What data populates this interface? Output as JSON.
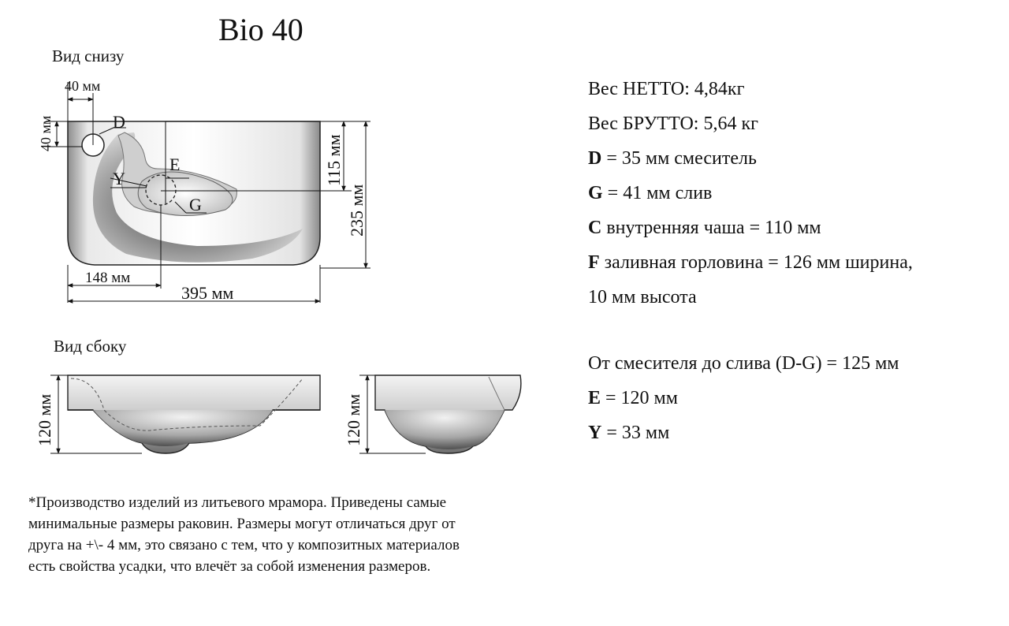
{
  "title": "Bio 40",
  "views": {
    "bottom": "Вид снизу",
    "side": "Вид сбоку"
  },
  "dimensions": {
    "d40_top": "40 мм",
    "d40_left": "40 мм",
    "d115": "115 мм",
    "d235": "235 мм",
    "d148": "148 мм",
    "d395": "395 мм",
    "h120_left": "120 мм",
    "h120_right": "120 мм"
  },
  "markers": {
    "D": "D",
    "E": "E",
    "Y": "Y",
    "G": "G"
  },
  "specs": {
    "net": "Вес НЕТТО: 4,84кг",
    "gross": "Вес БРУТТО: 5,64 кг",
    "D": {
      "key": "D",
      "text": " = 35 мм смеситель"
    },
    "G": {
      "key": "G",
      "text": " = 41 мм слив"
    },
    "C": {
      "key": "C",
      "text": " внутренняя чаша = 110 мм"
    },
    "F": {
      "key": "F",
      "text": " заливная горловина = 126 мм ширина,"
    },
    "F2": "10 мм высота",
    "dg": "От смесителя до слива (D-G) = 125 мм",
    "E": {
      "key": "E",
      "text": " = 120 мм"
    },
    "Y": {
      "key": "Y",
      "text": " = 33 мм"
    }
  },
  "note": {
    "line1": "*Производство изделий из литьевого мрамора. Приведены самые",
    "line2": "минимальные размеры раковин. Размеры могут отличаться друг от",
    "line3": "друга на +\\- 4 мм, это связано с тем, что у композитных материалов",
    "line4": "есть свойства усадки, что влечёт за собой изменения размеров."
  }
}
